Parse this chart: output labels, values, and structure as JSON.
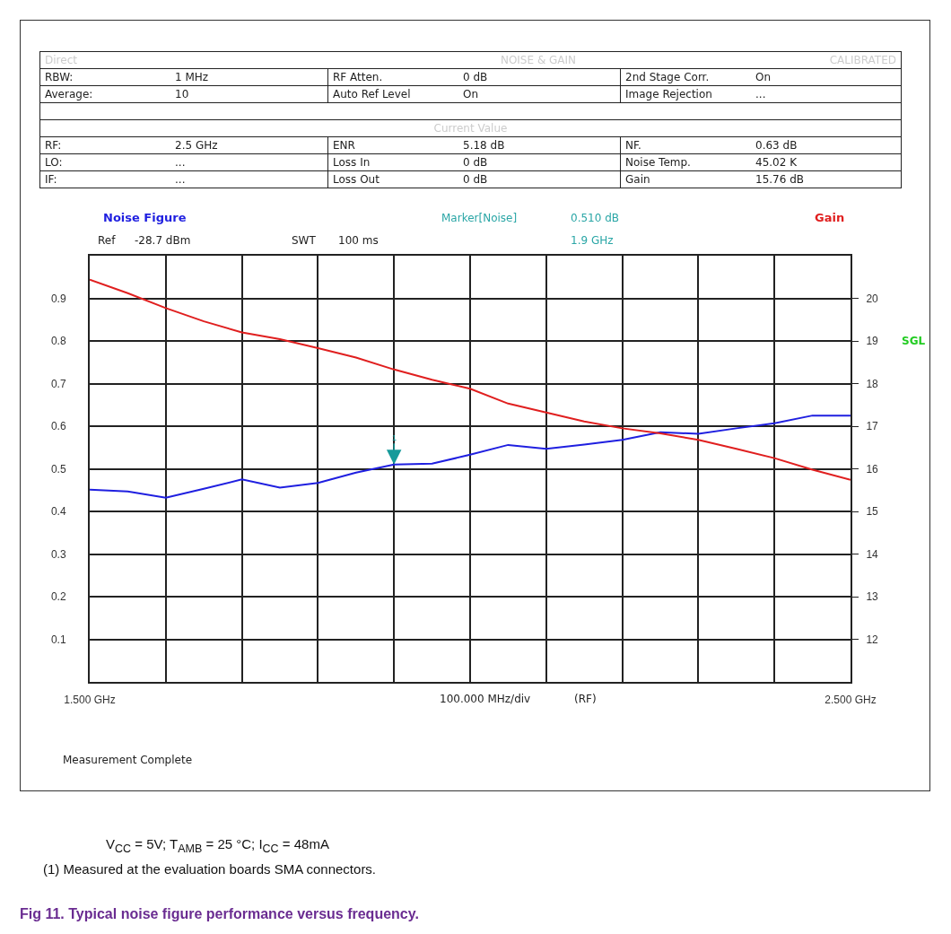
{
  "chart_data": {
    "type": "line",
    "title": "Fig 11. Typical noise figure performance versus frequency.",
    "xlabel": "100.000 MHz/div",
    "x": [
      1.5,
      1.55,
      1.6,
      1.65,
      1.7,
      1.75,
      1.8,
      1.85,
      1.9,
      1.95,
      2.0,
      2.05,
      2.1,
      2.15,
      2.2,
      2.25,
      2.3,
      2.35,
      2.4,
      2.45,
      2.5
    ],
    "series": [
      {
        "name": "Noise Figure",
        "color": "#1f1fe0",
        "values": [
          0.451,
          0.447,
          0.432,
          0.453,
          0.475,
          0.456,
          0.467,
          0.491,
          0.51,
          0.512,
          0.533,
          0.556,
          0.547,
          0.557,
          0.568,
          0.586,
          0.582,
          0.595,
          0.607,
          0.625,
          0.625
        ]
      },
      {
        "name": "Gain",
        "color": "#e01f1f",
        "axis": "y2",
        "values": [
          20.44,
          20.12,
          19.77,
          19.46,
          19.2,
          19.04,
          18.83,
          18.61,
          18.33,
          18.09,
          17.88,
          17.53,
          17.32,
          17.11,
          16.95,
          16.83,
          16.68,
          16.47,
          16.25,
          15.98,
          15.74
        ]
      }
    ],
    "xlim": [
      1.5,
      2.5
    ],
    "xticks": [
      {
        "value": 1.5,
        "label": "1.500 GHz"
      },
      {
        "value": 1.6,
        "label": null
      },
      {
        "value": 1.7,
        "label": null
      },
      {
        "value": 1.8,
        "label": null
      },
      {
        "value": 1.9,
        "label": null
      },
      {
        "value": 2.0,
        "label": null
      },
      {
        "value": 2.1,
        "label": null
      },
      {
        "value": 2.2,
        "label": null
      },
      {
        "value": 2.3,
        "label": null
      },
      {
        "value": 2.4,
        "label": null
      },
      {
        "value": 2.5,
        "label": "2.500 GHz"
      }
    ],
    "ylim": [
      0,
      1
    ],
    "yticks": [
      0.1,
      0.2,
      0.3,
      0.4,
      0.5,
      0.6,
      0.7,
      0.8,
      0.9
    ],
    "y2lim": [
      11,
      21
    ],
    "y2ticks": [
      12,
      13,
      14,
      15,
      16,
      17,
      18,
      19,
      20
    ],
    "grid": true,
    "legend": false,
    "marker": "none",
    "line_style": "solid",
    "annotations": [
      "Direct",
      "NOISE & GAIN",
      "CALIBRATED",
      "RBW:",
      "1 MHz",
      "RF Atten.",
      "0 dB",
      "2nd Stage Corr.",
      "On",
      "Average:",
      "10",
      "Auto Ref Level",
      "On",
      "Image Rejection",
      "...",
      "Current Value",
      "RF:",
      "2.5 GHz",
      "ENR",
      "5.18 dB",
      "NF.",
      "0.63 dB",
      "LO:",
      "...",
      "Loss In",
      "0 dB",
      "Noise Temp.",
      "45.02 K",
      "IF:",
      "...",
      "Loss Out",
      "0 dB",
      "Gain",
      "15.76 dB",
      "Ref",
      "-28.7 dBm",
      "SWT",
      "100 ms",
      "Marker[Noise]",
      "0.510 dB",
      "1.9 GHz",
      "SGL",
      "(RF)",
      "Measurement Complete",
      "V$_{CC}$ = 5V; T$_{AMB}$ = 25 °C; I$_{CC}$ = 48mA",
      "(1)  Measured at the evaluation boards SMA connectors.",
      {
        "text": "1",
        "x": 1.9,
        "y": 0.51
      }
    ]
  }
}
